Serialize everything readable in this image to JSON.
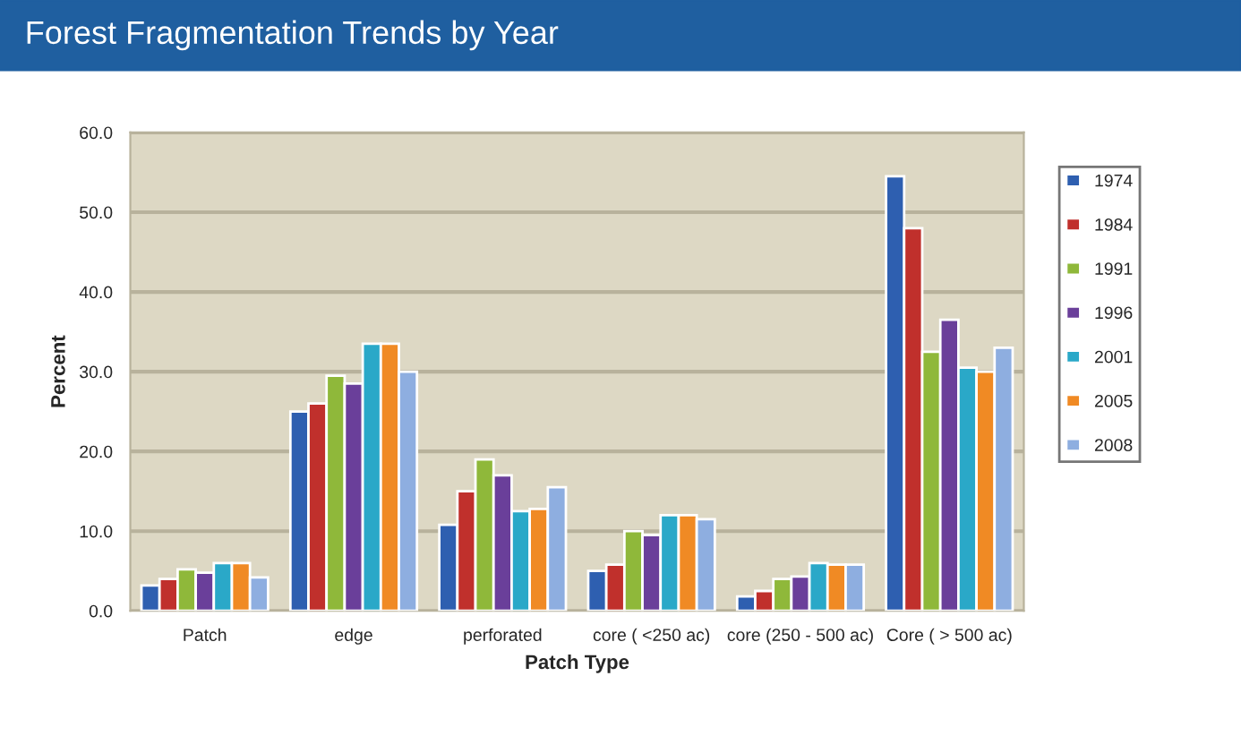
{
  "chart_data": {
    "type": "bar",
    "title": "Forest Fragmentation Trends by Year",
    "xlabel": "Patch Type",
    "ylabel": "Percent",
    "categories": [
      "Patch",
      "edge",
      "perforated",
      "core ( <250 ac)",
      "core (250 - 500 ac)",
      "Core ( > 500 ac)"
    ],
    "series": [
      {
        "name": "1974",
        "color": "#2e5fb0",
        "values": [
          3.2,
          25.0,
          10.8,
          5.0,
          1.8,
          54.5
        ]
      },
      {
        "name": "1984",
        "color": "#c0302c",
        "values": [
          4.0,
          26.0,
          15.0,
          5.8,
          2.5,
          48.0
        ]
      },
      {
        "name": "1991",
        "color": "#8fb83a",
        "values": [
          5.2,
          29.5,
          19.0,
          10.0,
          4.0,
          32.5
        ]
      },
      {
        "name": "1996",
        "color": "#6a3f9a",
        "values": [
          4.8,
          28.5,
          17.0,
          9.5,
          4.3,
          36.5
        ]
      },
      {
        "name": "2001",
        "color": "#2aa8c8",
        "values": [
          6.0,
          33.5,
          12.5,
          12.0,
          6.0,
          30.5
        ]
      },
      {
        "name": "2005",
        "color": "#f08a24",
        "values": [
          6.0,
          33.5,
          12.8,
          12.0,
          5.8,
          30.0
        ]
      },
      {
        "name": "2008",
        "color": "#8eaee0",
        "values": [
          4.2,
          30.0,
          15.5,
          11.5,
          5.8,
          33.0
        ]
      }
    ],
    "ylim": [
      0,
      60
    ],
    "yticks": [
      {
        "value": 0,
        "label": "0.0"
      },
      {
        "value": 10,
        "label": "10.0"
      },
      {
        "value": 20,
        "label": "20.0"
      },
      {
        "value": 30,
        "label": "30.0"
      },
      {
        "value": 40,
        "label": "40.0"
      },
      {
        "value": 50,
        "label": "50.0"
      },
      {
        "value": 60,
        "label": "60.0"
      }
    ],
    "grid": "y",
    "legend": "right"
  }
}
